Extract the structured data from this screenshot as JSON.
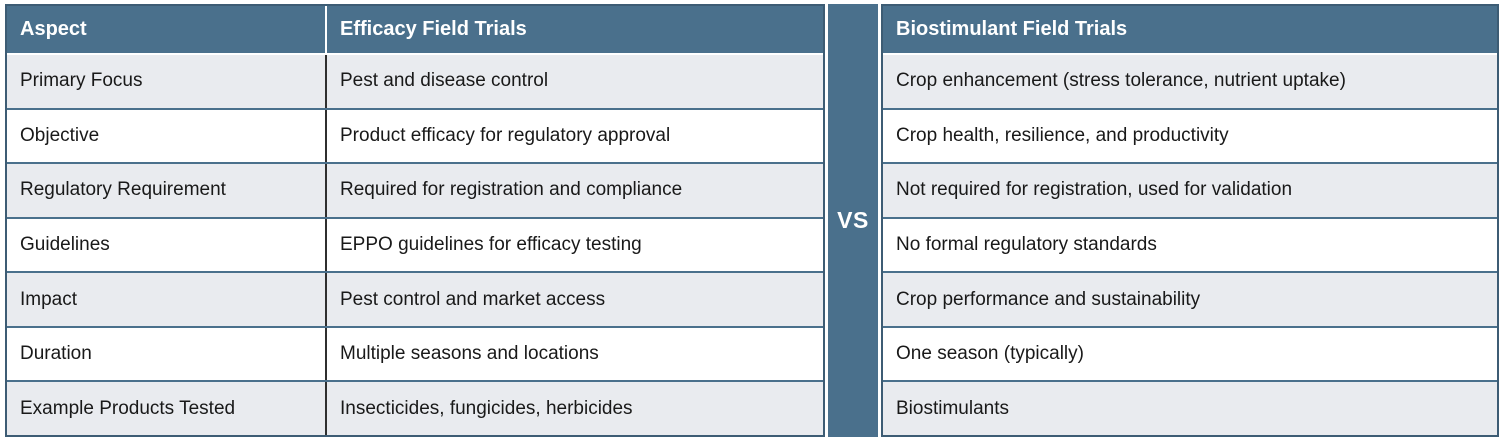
{
  "vs_label": "VS",
  "left_table": {
    "headers": [
      "Aspect",
      "Efficacy Field Trials"
    ]
  },
  "right_table": {
    "header": "Biostimulant Field Trials"
  },
  "rows": [
    {
      "aspect": "Primary Focus",
      "efficacy": "Pest and disease control",
      "biostimulant": "Crop enhancement (stress tolerance, nutrient uptake)"
    },
    {
      "aspect": "Objective",
      "efficacy": "Product efficacy for regulatory approval",
      "biostimulant": "Crop health, resilience, and productivity"
    },
    {
      "aspect": "Regulatory Requirement",
      "efficacy": "Required for registration and compliance",
      "biostimulant": "Not required for registration, used for validation"
    },
    {
      "aspect": "Guidelines",
      "efficacy": "EPPO guidelines for efficacy testing",
      "biostimulant": "No formal regulatory standards"
    },
    {
      "aspect": "Impact",
      "efficacy": "Pest control and market access",
      "biostimulant": "Crop performance and sustainability"
    },
    {
      "aspect": "Duration",
      "efficacy": "Multiple seasons and locations",
      "biostimulant": "One season (typically)"
    },
    {
      "aspect": "Example Products Tested",
      "efficacy": "Insecticides, fungicides, herbicides",
      "biostimulant": "Biostimulants"
    }
  ],
  "colors": {
    "header_bg": "#4A708C",
    "vs_band_bg": "#4A708C",
    "outer_border": "#3D5C74",
    "row_divider": "#4A708C",
    "column_divider": "#2F2F2F",
    "row_alt_bg": "#E9EBEF",
    "row_bg": "#FFFFFF",
    "header_text": "#FFFFFF",
    "body_text": "#191919"
  },
  "chart_data": {
    "type": "table",
    "title": "Efficacy Field Trials vs Biostimulant Field Trials",
    "columns": [
      "Aspect",
      "Efficacy Field Trials",
      "Biostimulant Field Trials"
    ],
    "rows": [
      [
        "Primary Focus",
        "Pest and disease control",
        "Crop enhancement (stress tolerance, nutrient uptake)"
      ],
      [
        "Objective",
        "Product efficacy for regulatory approval",
        "Crop health, resilience, and productivity"
      ],
      [
        "Regulatory Requirement",
        "Required for registration and compliance",
        "Not required for registration, used for validation"
      ],
      [
        "Guidelines",
        "EPPO guidelines for efficacy testing",
        "No formal regulatory standards"
      ],
      [
        "Impact",
        "Pest control and market access",
        "Crop performance and sustainability"
      ],
      [
        "Duration",
        "Multiple seasons and locations",
        "One season (typically)"
      ],
      [
        "Example Products Tested",
        "Insecticides, fungicides, herbicides",
        "Biostimulants"
      ]
    ]
  }
}
